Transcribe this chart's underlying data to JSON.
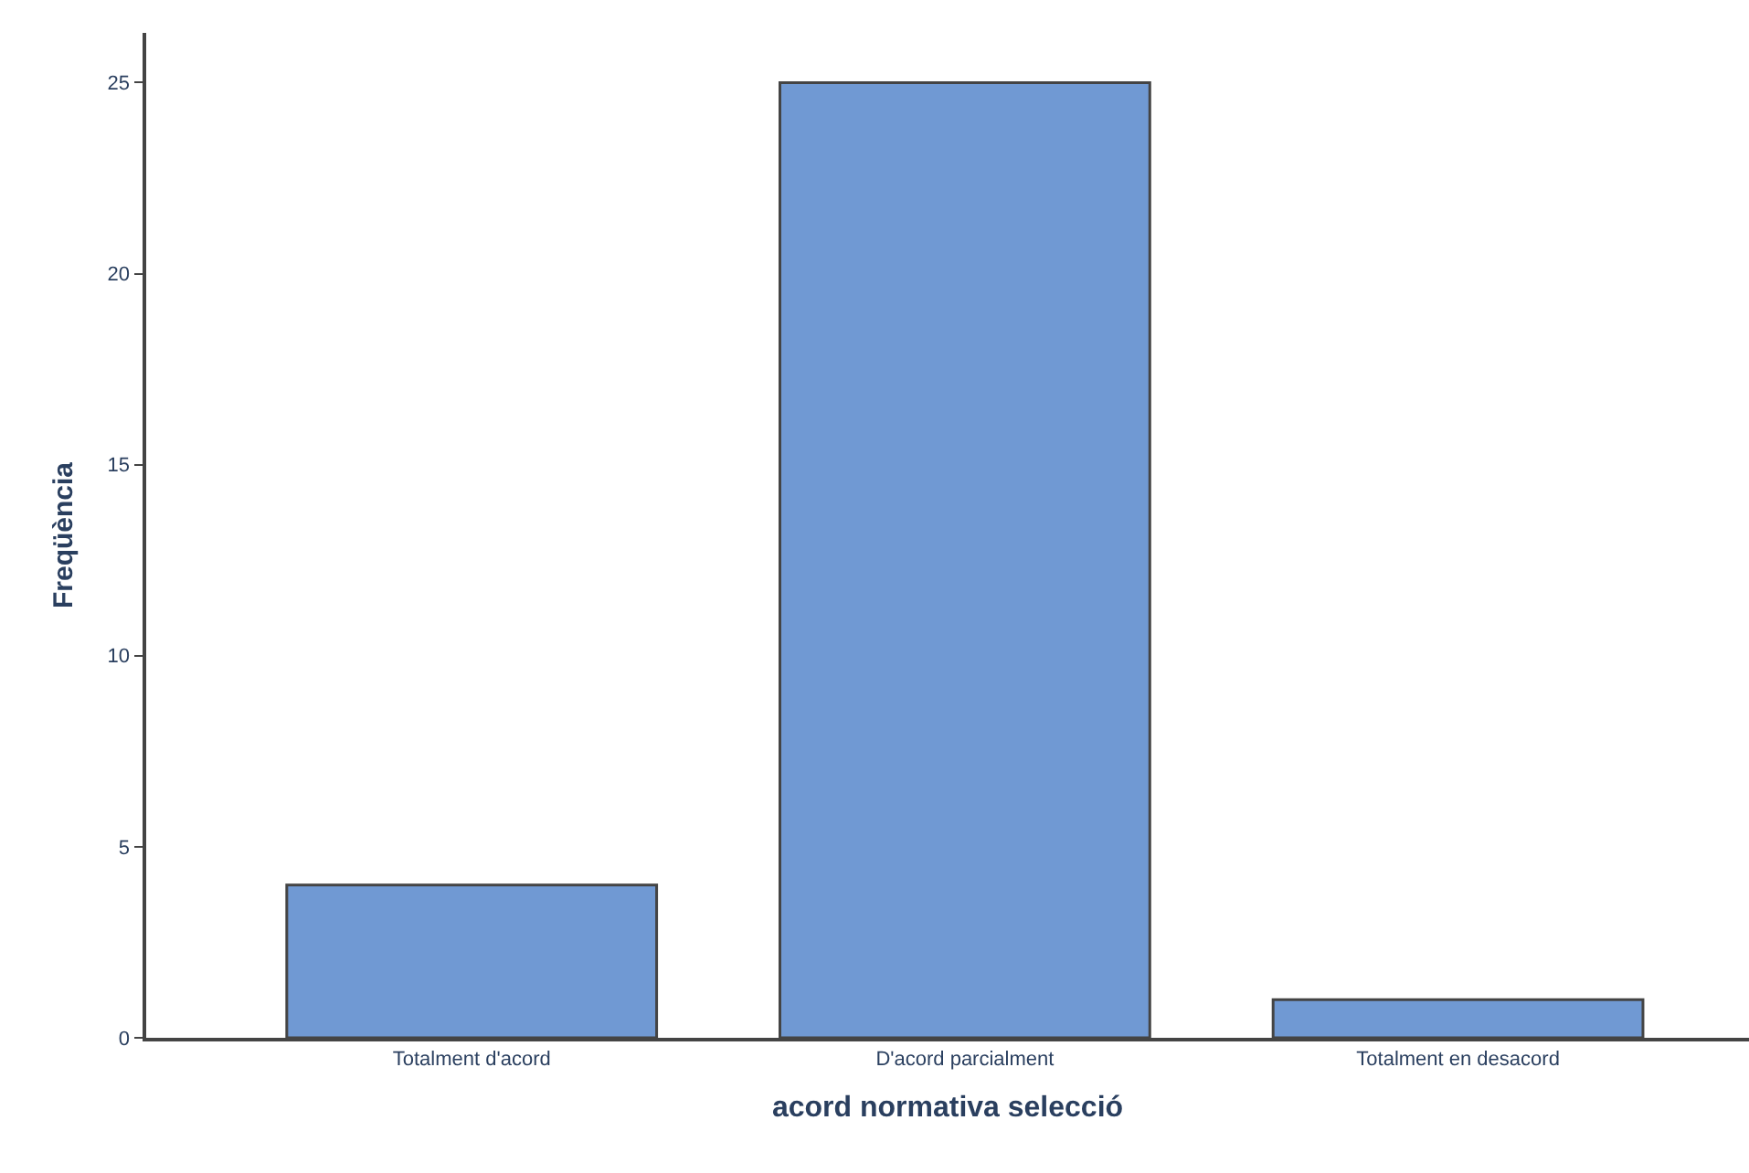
{
  "chart_data": {
    "type": "bar",
    "xlabel": "acord normativa selecció",
    "ylabel": "Freqüència",
    "categories": [
      "Totalment d'acord",
      "D'acord parcialment",
      "Totalment en desacord"
    ],
    "values": [
      4,
      25,
      1
    ],
    "color": "#7099d3",
    "ylim": [
      0,
      26.3
    ],
    "yticks": [
      0,
      5,
      10,
      15,
      20,
      25
    ]
  }
}
